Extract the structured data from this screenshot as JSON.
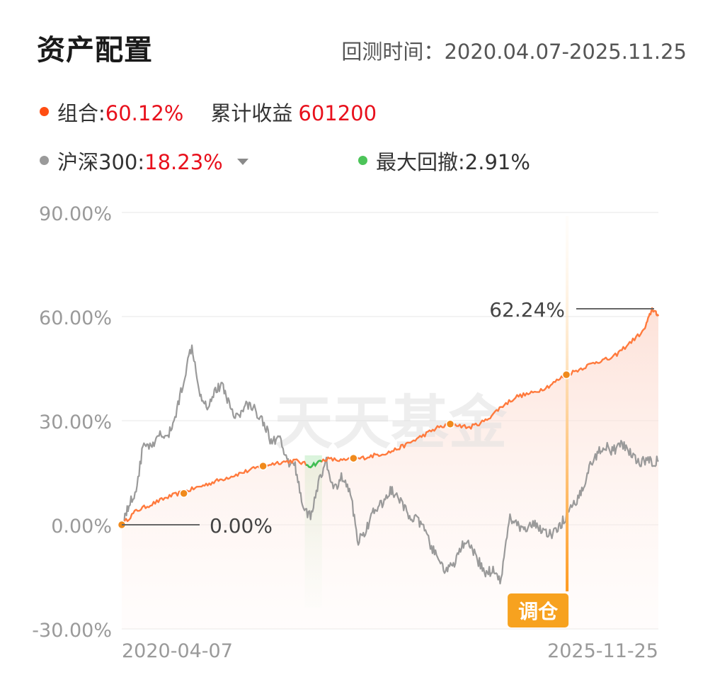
{
  "header": {
    "title": "资产配置",
    "period_label": "回测时间：",
    "period_value": "2020.04.07-2025.11.25"
  },
  "legend": {
    "portfolio": {
      "label": "组合:",
      "value": "60.12%",
      "extra_label": "累计收益",
      "extra_value": "601200",
      "color": "#ff4d12"
    },
    "benchmark": {
      "label": "沪深300:",
      "value": "18.23%",
      "color": "#9a9a9a"
    },
    "drawdown": {
      "label": "最大回撤:",
      "value": "2.91%",
      "color": "#4cc459"
    }
  },
  "watermark": "天天基金",
  "chart_data": {
    "type": "line",
    "x_start": "2020-04-07",
    "x_end": "2025-11-25",
    "x_tick_labels": [
      "2020-04-07",
      "2025-11-25"
    ],
    "y_tick_labels": [
      "90.00%",
      "60.00%",
      "30.00%",
      "0.00%",
      "-30.00%"
    ],
    "ylim": [
      -30,
      90
    ],
    "grid": true,
    "series": [
      {
        "name": "组合",
        "color": "#ff7a3d",
        "x": [
          "2020-04-07",
          "2020-06-01",
          "2020-08-01",
          "2020-10-01",
          "2020-12-01",
          "2021-02-01",
          "2021-04-01",
          "2021-06-01",
          "2021-08-01",
          "2021-10-01",
          "2021-12-01",
          "2022-02-01",
          "2022-04-01",
          "2022-06-01",
          "2022-08-01",
          "2022-10-01",
          "2022-12-01",
          "2023-02-01",
          "2023-04-01",
          "2023-06-01",
          "2023-08-01",
          "2023-10-01",
          "2023-12-01",
          "2024-02-01",
          "2024-04-01",
          "2024-06-01",
          "2024-08-01",
          "2024-10-01",
          "2024-12-01",
          "2025-02-01",
          "2025-04-01",
          "2025-06-01",
          "2025-08-01",
          "2025-10-01",
          "2025-11-01",
          "2025-11-25"
        ],
        "values": [
          0,
          4,
          6,
          8,
          9.5,
          11,
          12.5,
          14,
          15.5,
          17,
          18,
          18.5,
          17,
          19,
          18.5,
          19,
          20,
          21,
          23,
          25.5,
          28,
          29,
          28,
          30,
          34,
          37,
          38,
          40,
          43,
          45,
          47,
          48,
          52,
          56,
          62.24,
          60.12
        ]
      },
      {
        "name": "沪深300",
        "color": "#9a9a9a",
        "x": [
          "2020-04-07",
          "2020-05-01",
          "2020-06-01",
          "2020-07-01",
          "2020-08-01",
          "2020-09-01",
          "2020-10-01",
          "2020-11-01",
          "2020-12-01",
          "2021-01-01",
          "2021-02-01",
          "2021-03-01",
          "2021-04-01",
          "2021-05-01",
          "2021-06-01",
          "2021-07-01",
          "2021-08-01",
          "2021-09-01",
          "2021-10-01",
          "2021-11-01",
          "2021-12-01",
          "2022-01-01",
          "2022-02-01",
          "2022-03-01",
          "2022-04-01",
          "2022-05-01",
          "2022-06-01",
          "2022-07-01",
          "2022-08-01",
          "2022-09-01",
          "2022-10-01",
          "2022-11-01",
          "2022-12-01",
          "2023-01-01",
          "2023-02-01",
          "2023-03-01",
          "2023-04-01",
          "2023-05-01",
          "2023-06-01",
          "2023-07-01",
          "2023-08-01",
          "2023-09-01",
          "2023-10-01",
          "2023-11-01",
          "2023-12-01",
          "2024-01-01",
          "2024-02-01",
          "2024-03-01",
          "2024-04-01",
          "2024-05-01",
          "2024-06-01",
          "2024-07-01",
          "2024-08-01",
          "2024-09-01",
          "2024-10-01",
          "2024-11-01",
          "2024-12-01",
          "2025-01-01",
          "2025-02-01",
          "2025-03-01",
          "2025-04-01",
          "2025-05-01",
          "2025-06-01",
          "2025-07-01",
          "2025-08-01",
          "2025-09-01",
          "2025-10-01",
          "2025-11-01",
          "2025-11-25"
        ],
        "values": [
          0,
          5,
          10,
          24,
          22,
          26,
          25,
          32,
          42,
          52,
          38,
          34,
          39,
          40,
          33,
          31,
          35,
          33,
          30,
          24,
          25,
          18,
          17,
          6,
          2,
          12,
          18,
          10,
          14,
          9,
          -5,
          -1,
          4,
          6,
          10,
          8,
          4,
          2,
          0,
          -5,
          -10,
          -13,
          -12,
          -6,
          -6,
          -10,
          -14,
          -13,
          -16,
          2,
          0,
          -2,
          0,
          -1,
          -3,
          -2,
          2,
          5,
          9,
          16,
          20,
          23,
          21,
          23,
          22,
          18.23,
          18.23,
          18.23,
          18.23
        ]
      }
    ],
    "point_labels": [
      "0.00%",
      "62.24%"
    ],
    "marker_label": "调仓"
  }
}
